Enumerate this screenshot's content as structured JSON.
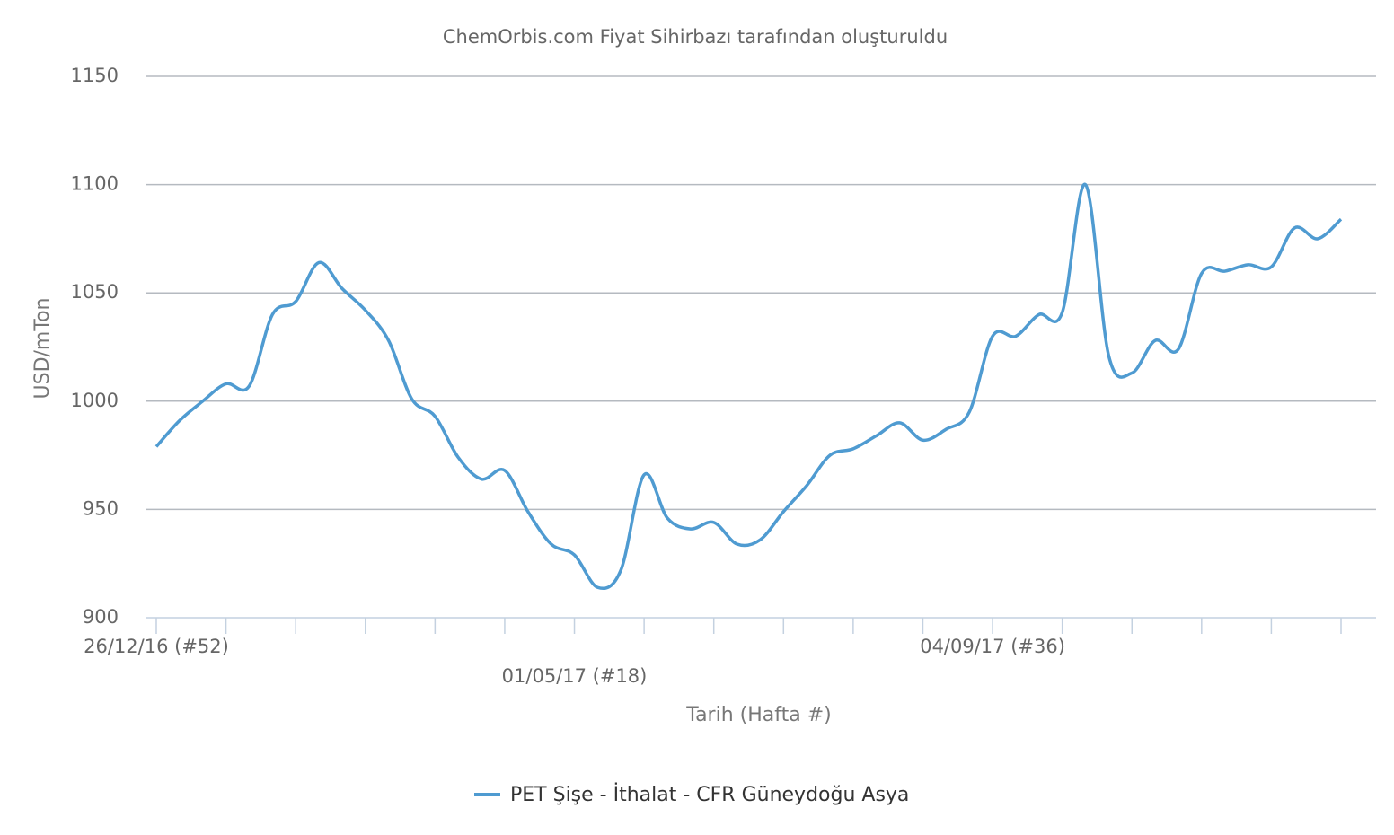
{
  "chart_data": {
    "type": "line",
    "title": "ChemOrbis.com Fiyat Sihirbazı tarafından oluşturuldu",
    "x_label": "Tarih (Hafta #)",
    "y_label": "USD/mTon",
    "categories": [
      "26/12/16 (#52)",
      null,
      null,
      null,
      null,
      null,
      null,
      null,
      null,
      null,
      null,
      null,
      null,
      null,
      null,
      null,
      null,
      null,
      "01/05/17 (#18)",
      null,
      null,
      null,
      null,
      null,
      null,
      null,
      null,
      null,
      null,
      null,
      null,
      null,
      null,
      null,
      null,
      null,
      "04/09/17 (#36)",
      null,
      null,
      null,
      null,
      null,
      null,
      null,
      null,
      null,
      null,
      null,
      null,
      null,
      null,
      null
    ],
    "series": [
      {
        "name": "PET Şişe - İthalat - CFR Güneydoğu Asya",
        "color": "#4f9bd1",
        "values": [
          979,
          991,
          1000,
          1008,
          1007,
          1040,
          1046,
          1064,
          1052,
          1042,
          1028,
          1001,
          993,
          974,
          964,
          968,
          949,
          934,
          929,
          914,
          922,
          966,
          946,
          941,
          944,
          934,
          936,
          949,
          961,
          975,
          978,
          984,
          990,
          982,
          987,
          995,
          1030,
          1030,
          1040,
          1041,
          1100,
          1021,
          1013,
          1028,
          1024,
          1059,
          1060,
          1063,
          1062,
          1080,
          1075,
          1084
        ]
      }
    ],
    "ylim": [
      900,
      1150
    ],
    "yticks": [
      900,
      950,
      1000,
      1050,
      1100,
      1150
    ],
    "grid": true,
    "legend": "bottom"
  }
}
